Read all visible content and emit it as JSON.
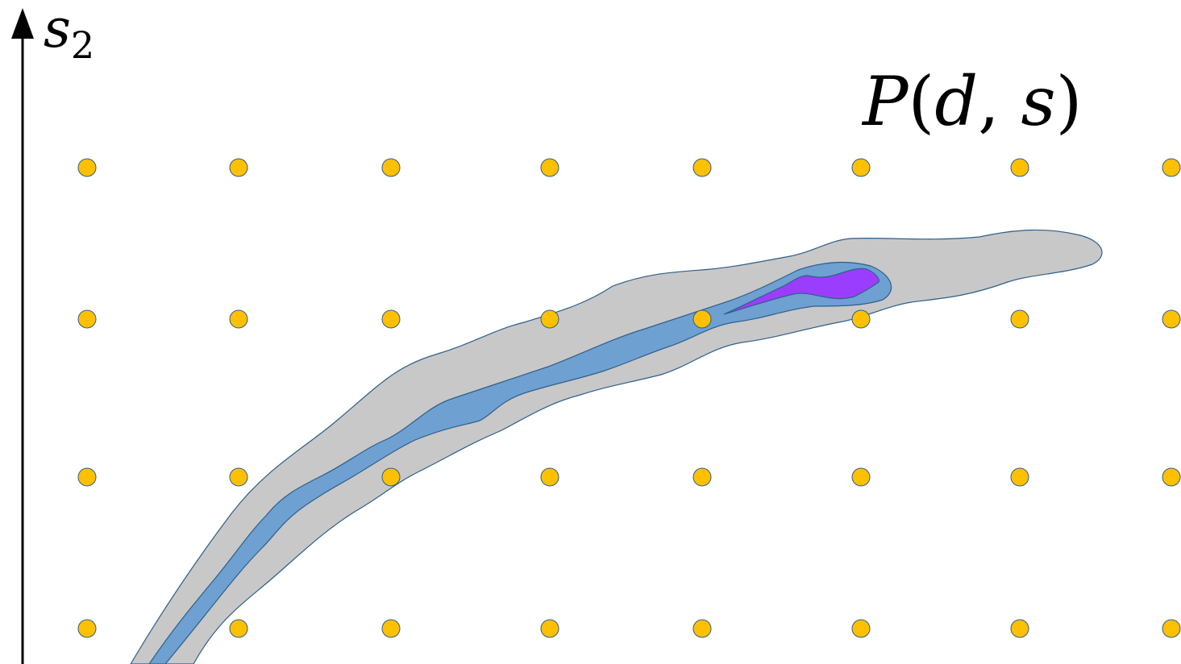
{
  "axis": {
    "y_label_base": "s",
    "y_label_sub": "2"
  },
  "title": {
    "script_letter": "P",
    "open_paren": "(",
    "arg1": "d",
    "comma": ",",
    "arg2": "s",
    "close_paren": ")"
  },
  "colors": {
    "axis": "#000000",
    "grid_dot_fill": "#ffc000",
    "grid_dot_stroke": "#2e5f8a",
    "outer_region_fill": "#c8c8c8",
    "middle_region_fill": "#6fa0d2",
    "inner_region_fill": "#9b3dff",
    "region_stroke": "#2e5f8a"
  },
  "grid": {
    "columns": 8,
    "rows": 4
  }
}
